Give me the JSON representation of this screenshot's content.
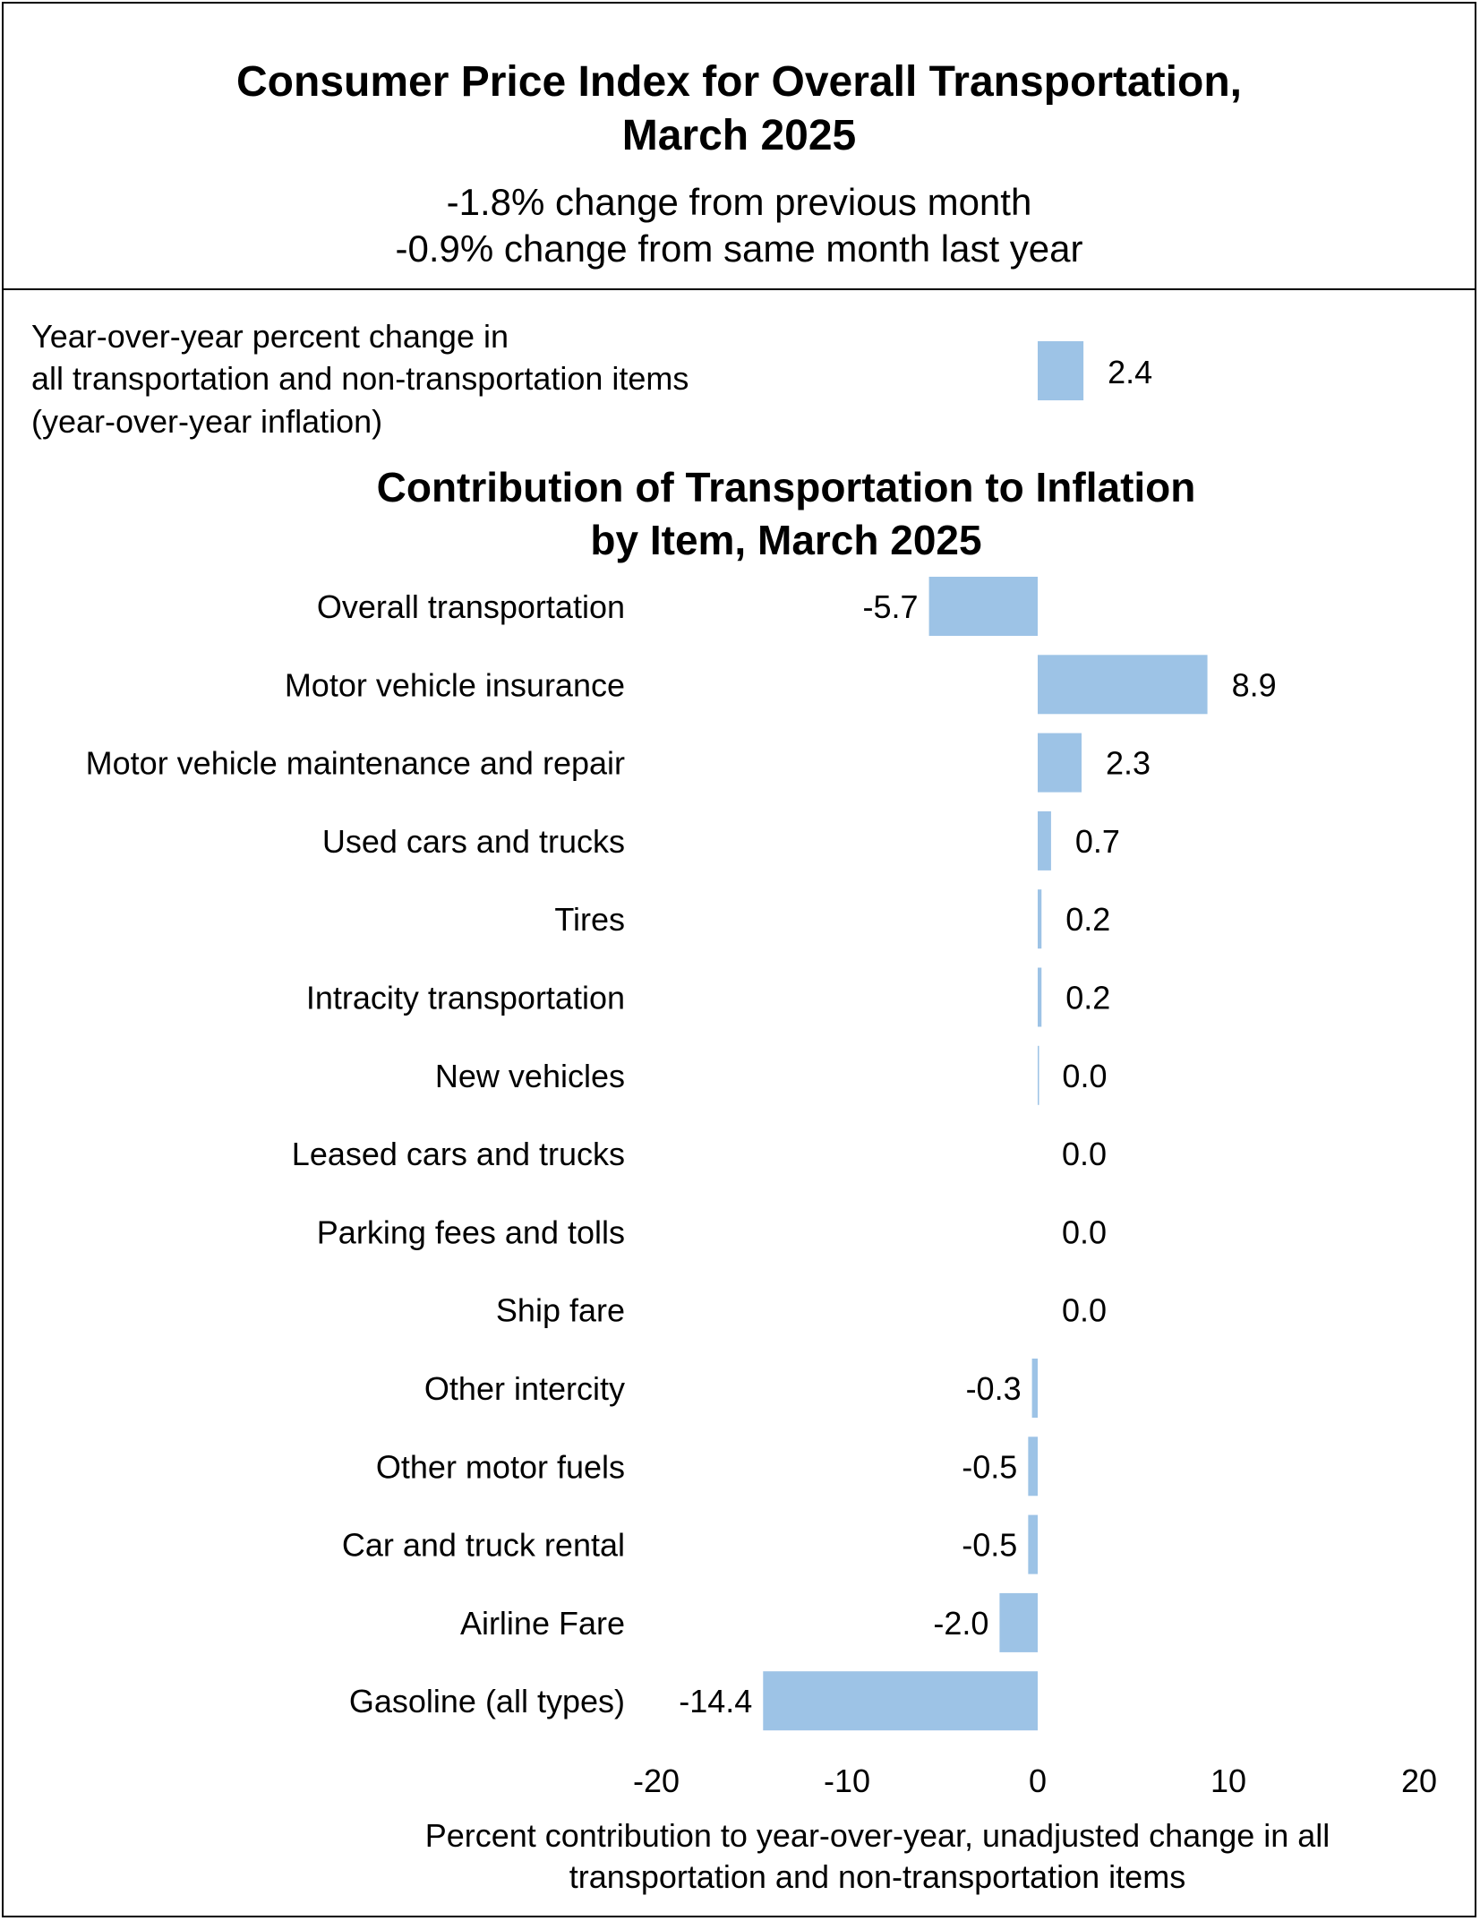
{
  "header": {
    "title_line1": "Consumer Price Index for Overall Transportation,",
    "title_line2": "March 2025",
    "subtitle_line1": "-1.8% change from previous month",
    "subtitle_line2": "-0.9% change from same month last year"
  },
  "colors": {
    "bar": "#9dc3e6",
    "text": "#000000",
    "border": "#000000"
  },
  "chart_data": {
    "type": "bar",
    "orientation": "horizontal",
    "title_lines": [
      "Contribution of Transportation to Inflation",
      "by Item, March 2025"
    ],
    "reference": {
      "label_lines": [
        "Year-over-year percent change in",
        "all transportation and non-transportation items",
        "(year-over-year inflation)"
      ],
      "value": 2.4,
      "value_label": "2.4"
    },
    "categories": [
      "Overall transportation",
      "Motor vehicle insurance",
      "Motor vehicle maintenance and repair",
      "Used cars and trucks",
      "Tires",
      "Intracity transportation",
      "New vehicles",
      "Leased cars and trucks",
      "Parking fees and tolls",
      "Ship fare",
      "Other intercity",
      "Other motor fuels",
      "Car and truck rental",
      "Airline Fare",
      "Gasoline (all types)"
    ],
    "values": [
      -5.7,
      8.9,
      2.3,
      0.7,
      0.2,
      0.2,
      0.02,
      0.0,
      0.0,
      0.0,
      -0.3,
      -0.5,
      -0.5,
      -2.0,
      -14.4
    ],
    "value_labels": [
      "-5.7",
      "8.9",
      "2.3",
      "0.7",
      "0.2",
      "0.2",
      "0.0",
      "0.0",
      "0.0",
      "0.0",
      "-0.3",
      "-0.5",
      "-0.5",
      "-2.0",
      "-14.4"
    ],
    "xlim": [
      -20,
      20
    ],
    "xticks": [
      -20,
      -10,
      0,
      10,
      20
    ],
    "xtick_labels": [
      "-20",
      "-10",
      "0",
      "10",
      "20"
    ],
    "xlabel_lines": [
      "Percent contribution to year-over-year, unadjusted change in all",
      "transportation and non-transportation items"
    ],
    "grid": false,
    "legend": "none"
  }
}
